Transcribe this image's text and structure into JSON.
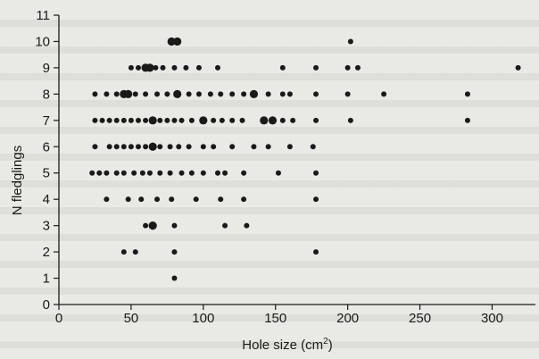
{
  "chart_data": {
    "type": "scatter",
    "title": "",
    "xlabel": "Hole size (cm",
    "xlabel_superscript": "2",
    "xlabel_close": ")",
    "ylabel": "N fledglings",
    "xlim": [
      0,
      330
    ],
    "ylim": [
      0,
      11
    ],
    "xticks": [
      0,
      50,
      100,
      150,
      200,
      250,
      300
    ],
    "yticks": [
      0,
      1,
      2,
      3,
      4,
      5,
      6,
      7,
      8,
      9,
      10,
      11
    ],
    "grid": false,
    "point_color": "#1a1a1a",
    "points": [
      {
        "x": 78,
        "y": 10,
        "s": 2
      },
      {
        "x": 82,
        "y": 10,
        "s": 2
      },
      {
        "x": 202,
        "y": 10,
        "s": 1
      },
      {
        "x": 50,
        "y": 9,
        "s": 1
      },
      {
        "x": 55,
        "y": 9,
        "s": 1
      },
      {
        "x": 60,
        "y": 9,
        "s": 2
      },
      {
        "x": 63,
        "y": 9,
        "s": 2
      },
      {
        "x": 67,
        "y": 9,
        "s": 1
      },
      {
        "x": 72,
        "y": 9,
        "s": 1
      },
      {
        "x": 80,
        "y": 9,
        "s": 1
      },
      {
        "x": 88,
        "y": 9,
        "s": 1
      },
      {
        "x": 97,
        "y": 9,
        "s": 1
      },
      {
        "x": 110,
        "y": 9,
        "s": 1
      },
      {
        "x": 155,
        "y": 9,
        "s": 1
      },
      {
        "x": 178,
        "y": 9,
        "s": 1
      },
      {
        "x": 200,
        "y": 9,
        "s": 1
      },
      {
        "x": 207,
        "y": 9,
        "s": 1
      },
      {
        "x": 318,
        "y": 9,
        "s": 1
      },
      {
        "x": 25,
        "y": 8,
        "s": 1
      },
      {
        "x": 33,
        "y": 8,
        "s": 1
      },
      {
        "x": 40,
        "y": 8,
        "s": 1
      },
      {
        "x": 45,
        "y": 8,
        "s": 2
      },
      {
        "x": 48,
        "y": 8,
        "s": 2
      },
      {
        "x": 53,
        "y": 8,
        "s": 1
      },
      {
        "x": 60,
        "y": 8,
        "s": 1
      },
      {
        "x": 68,
        "y": 8,
        "s": 1
      },
      {
        "x": 75,
        "y": 8,
        "s": 1
      },
      {
        "x": 82,
        "y": 8,
        "s": 2
      },
      {
        "x": 90,
        "y": 8,
        "s": 1
      },
      {
        "x": 97,
        "y": 8,
        "s": 1
      },
      {
        "x": 105,
        "y": 8,
        "s": 1
      },
      {
        "x": 112,
        "y": 8,
        "s": 1
      },
      {
        "x": 120,
        "y": 8,
        "s": 1
      },
      {
        "x": 128,
        "y": 8,
        "s": 1
      },
      {
        "x": 135,
        "y": 8,
        "s": 2
      },
      {
        "x": 145,
        "y": 8,
        "s": 1
      },
      {
        "x": 155,
        "y": 8,
        "s": 1
      },
      {
        "x": 160,
        "y": 8,
        "s": 1
      },
      {
        "x": 178,
        "y": 8,
        "s": 1
      },
      {
        "x": 200,
        "y": 8,
        "s": 1
      },
      {
        "x": 225,
        "y": 8,
        "s": 1
      },
      {
        "x": 283,
        "y": 8,
        "s": 1
      },
      {
        "x": 25,
        "y": 7,
        "s": 1
      },
      {
        "x": 30,
        "y": 7,
        "s": 1
      },
      {
        "x": 35,
        "y": 7,
        "s": 1
      },
      {
        "x": 40,
        "y": 7,
        "s": 1
      },
      {
        "x": 45,
        "y": 7,
        "s": 1
      },
      {
        "x": 50,
        "y": 7,
        "s": 1
      },
      {
        "x": 55,
        "y": 7,
        "s": 1
      },
      {
        "x": 60,
        "y": 7,
        "s": 1
      },
      {
        "x": 65,
        "y": 7,
        "s": 2
      },
      {
        "x": 70,
        "y": 7,
        "s": 1
      },
      {
        "x": 75,
        "y": 7,
        "s": 1
      },
      {
        "x": 80,
        "y": 7,
        "s": 1
      },
      {
        "x": 85,
        "y": 7,
        "s": 1
      },
      {
        "x": 92,
        "y": 7,
        "s": 1
      },
      {
        "x": 100,
        "y": 7,
        "s": 2
      },
      {
        "x": 107,
        "y": 7,
        "s": 1
      },
      {
        "x": 113,
        "y": 7,
        "s": 1
      },
      {
        "x": 120,
        "y": 7,
        "s": 1
      },
      {
        "x": 127,
        "y": 7,
        "s": 1
      },
      {
        "x": 142,
        "y": 7,
        "s": 2
      },
      {
        "x": 148,
        "y": 7,
        "s": 2
      },
      {
        "x": 155,
        "y": 7,
        "s": 1
      },
      {
        "x": 162,
        "y": 7,
        "s": 1
      },
      {
        "x": 178,
        "y": 7,
        "s": 1
      },
      {
        "x": 202,
        "y": 7,
        "s": 1
      },
      {
        "x": 283,
        "y": 7,
        "s": 1
      },
      {
        "x": 25,
        "y": 6,
        "s": 1
      },
      {
        "x": 35,
        "y": 6,
        "s": 1
      },
      {
        "x": 40,
        "y": 6,
        "s": 1
      },
      {
        "x": 45,
        "y": 6,
        "s": 1
      },
      {
        "x": 50,
        "y": 6,
        "s": 1
      },
      {
        "x": 55,
        "y": 6,
        "s": 1
      },
      {
        "x": 60,
        "y": 6,
        "s": 1
      },
      {
        "x": 65,
        "y": 6,
        "s": 2
      },
      {
        "x": 70,
        "y": 6,
        "s": 1
      },
      {
        "x": 77,
        "y": 6,
        "s": 1
      },
      {
        "x": 83,
        "y": 6,
        "s": 1
      },
      {
        "x": 90,
        "y": 6,
        "s": 1
      },
      {
        "x": 100,
        "y": 6,
        "s": 1
      },
      {
        "x": 107,
        "y": 6,
        "s": 1
      },
      {
        "x": 120,
        "y": 6,
        "s": 1
      },
      {
        "x": 135,
        "y": 6,
        "s": 1
      },
      {
        "x": 145,
        "y": 6,
        "s": 1
      },
      {
        "x": 160,
        "y": 6,
        "s": 1
      },
      {
        "x": 176,
        "y": 6,
        "s": 1
      },
      {
        "x": 23,
        "y": 5,
        "s": 1
      },
      {
        "x": 28,
        "y": 5,
        "s": 1
      },
      {
        "x": 33,
        "y": 5,
        "s": 1
      },
      {
        "x": 40,
        "y": 5,
        "s": 1
      },
      {
        "x": 45,
        "y": 5,
        "s": 1
      },
      {
        "x": 52,
        "y": 5,
        "s": 1
      },
      {
        "x": 58,
        "y": 5,
        "s": 1
      },
      {
        "x": 63,
        "y": 5,
        "s": 1
      },
      {
        "x": 70,
        "y": 5,
        "s": 1
      },
      {
        "x": 77,
        "y": 5,
        "s": 1
      },
      {
        "x": 85,
        "y": 5,
        "s": 1
      },
      {
        "x": 92,
        "y": 5,
        "s": 1
      },
      {
        "x": 100,
        "y": 5,
        "s": 1
      },
      {
        "x": 110,
        "y": 5,
        "s": 1
      },
      {
        "x": 115,
        "y": 5,
        "s": 1
      },
      {
        "x": 128,
        "y": 5,
        "s": 1
      },
      {
        "x": 152,
        "y": 5,
        "s": 1
      },
      {
        "x": 178,
        "y": 5,
        "s": 1
      },
      {
        "x": 33,
        "y": 4,
        "s": 1
      },
      {
        "x": 48,
        "y": 4,
        "s": 1
      },
      {
        "x": 57,
        "y": 4,
        "s": 1
      },
      {
        "x": 68,
        "y": 4,
        "s": 1
      },
      {
        "x": 78,
        "y": 4,
        "s": 1
      },
      {
        "x": 95,
        "y": 4,
        "s": 1
      },
      {
        "x": 112,
        "y": 4,
        "s": 1
      },
      {
        "x": 128,
        "y": 4,
        "s": 1
      },
      {
        "x": 178,
        "y": 4,
        "s": 1
      },
      {
        "x": 60,
        "y": 3,
        "s": 1
      },
      {
        "x": 65,
        "y": 3,
        "s": 2
      },
      {
        "x": 80,
        "y": 3,
        "s": 1
      },
      {
        "x": 115,
        "y": 3,
        "s": 1
      },
      {
        "x": 130,
        "y": 3,
        "s": 1
      },
      {
        "x": 45,
        "y": 2,
        "s": 1
      },
      {
        "x": 53,
        "y": 2,
        "s": 1
      },
      {
        "x": 80,
        "y": 2,
        "s": 1
      },
      {
        "x": 178,
        "y": 2,
        "s": 1
      },
      {
        "x": 80,
        "y": 1,
        "s": 1
      }
    ]
  }
}
